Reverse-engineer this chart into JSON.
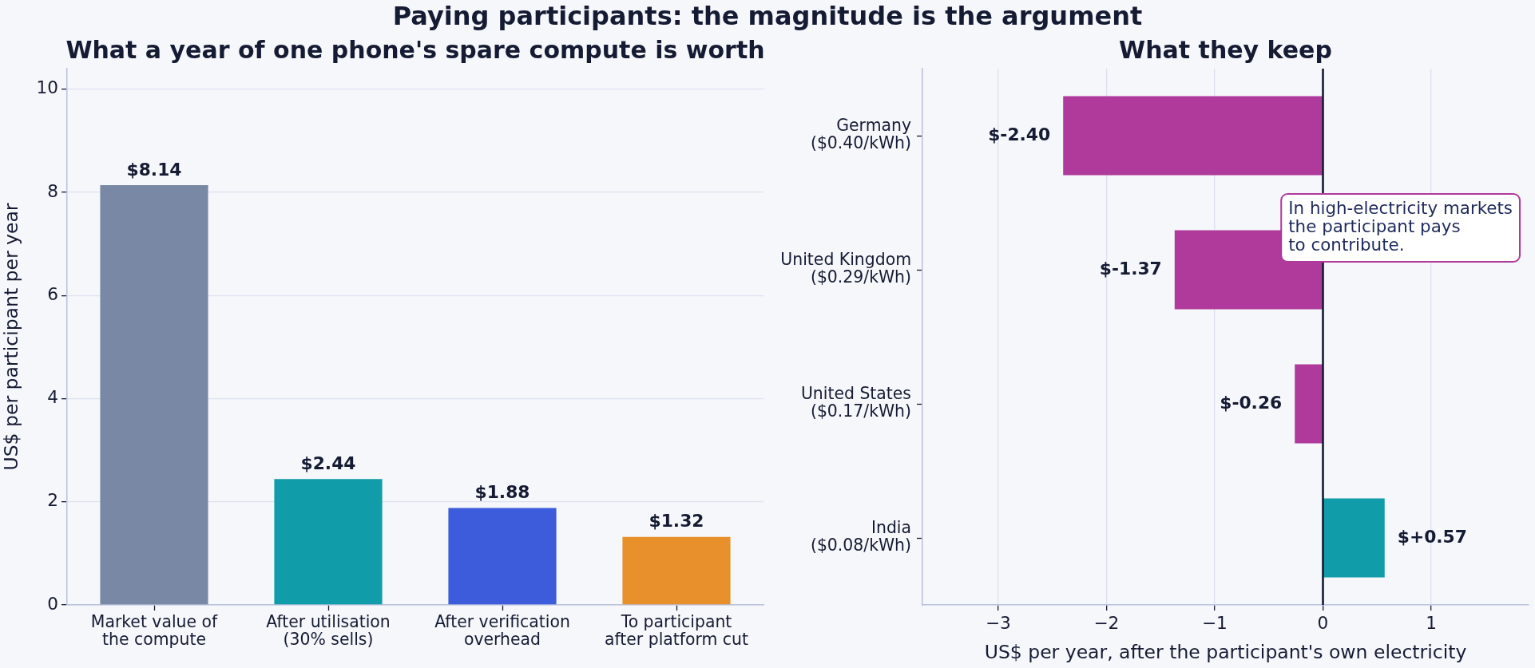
{
  "chart_data": [
    {
      "type": "bar",
      "title": "Paying participants: the magnitude is the argument",
      "subtitle": "What a year of one phone's spare compute is worth",
      "ylabel": "US$ per participant per year",
      "categories": [
        "Market value of\nthe compute",
        "After utilisation\n(30% sells)",
        "After verification\noverhead",
        "To participant\nafter platform cut"
      ],
      "values": [
        8.14,
        2.44,
        1.88,
        1.32
      ],
      "colors": [
        "#7888a5",
        "#109ca8",
        "#3c5cdb",
        "#e8912c"
      ],
      "value_labels": [
        "$8.14",
        "$2.44",
        "$1.88",
        "$1.32"
      ],
      "ylim": [
        0,
        10.4
      ],
      "yticks": [
        0,
        2,
        4,
        6,
        8,
        10
      ],
      "grid": "y"
    },
    {
      "type": "bar",
      "orientation": "horizontal",
      "title": "What they keep",
      "xlabel": "US$ per year, after the participant's own electricity",
      "categories": [
        "Germany\n($0.40/kWh)",
        "United Kingdom\n($0.29/kWh)",
        "United States\n($0.17/kWh)",
        "India\n($0.08/kWh)"
      ],
      "values": [
        -2.4,
        -1.37,
        -0.26,
        0.57
      ],
      "colors": [
        "#b0399c",
        "#b0399c",
        "#b0399c",
        "#109ca8"
      ],
      "value_labels": [
        "$-2.40",
        "$-1.37",
        "$-0.26",
        "$+0.57"
      ],
      "xlim": [
        -3.7,
        1.9
      ],
      "xticks": [
        {
          "value": -3,
          "label": "−3"
        },
        {
          "value": -2,
          "label": "−2"
        },
        {
          "value": -1,
          "label": "−1"
        },
        0,
        1
      ],
      "grid": "x",
      "ref_lines": [
        {
          "axis": "x",
          "value": 0,
          "color": "#151b33"
        }
      ],
      "annotations": [
        "In high-electricity markets\nthe participant pays\nto contribute."
      ]
    }
  ]
}
